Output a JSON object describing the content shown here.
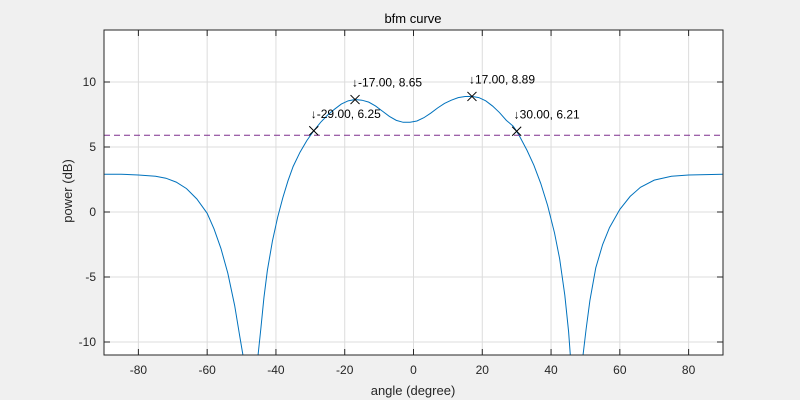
{
  "chart_data": {
    "type": "line",
    "title": "bfm curve",
    "xlabel": "angle (degree)",
    "ylabel": "power (dB)",
    "xlim": [
      -90,
      90
    ],
    "ylim": [
      -11,
      14
    ],
    "xticks": [
      -80,
      -60,
      -40,
      -20,
      0,
      20,
      40,
      60,
      80
    ],
    "yticks": [
      -10,
      -5,
      0,
      5,
      10
    ],
    "grid": true,
    "colors": {
      "curve": "#0072bd",
      "threshold": "#7e2f8e",
      "marker": "#000000",
      "axes_bg": "#ffffff",
      "figure_bg": "#f0f0f0"
    },
    "series": [
      {
        "points": [
          [
            -90,
            2.9
          ],
          [
            -85,
            2.9
          ],
          [
            -80,
            2.85
          ],
          [
            -75,
            2.75
          ],
          [
            -72,
            2.6
          ],
          [
            -69,
            2.3
          ],
          [
            -66,
            1.8
          ],
          [
            -63,
            1.0
          ],
          [
            -60,
            -0.1
          ],
          [
            -58,
            -1.3
          ],
          [
            -56,
            -2.8
          ],
          [
            -54,
            -4.7
          ],
          [
            -52,
            -7.2
          ],
          [
            -50.5,
            -9.6
          ],
          [
            -49.6,
            -11
          ],
          null,
          [
            -45.2,
            -11
          ],
          [
            -44.4,
            -9.0
          ],
          [
            -43.5,
            -6.6
          ],
          [
            -42.5,
            -4.5
          ],
          [
            -41,
            -2.2
          ],
          [
            -39.5,
            -0.4
          ],
          [
            -38,
            1.1
          ],
          [
            -36.5,
            2.4
          ],
          [
            -35,
            3.5
          ],
          [
            -33,
            4.6
          ],
          [
            -31,
            5.5
          ],
          [
            -29,
            6.25
          ],
          [
            -27,
            6.9
          ],
          [
            -25,
            7.45
          ],
          [
            -23,
            7.9
          ],
          [
            -21,
            8.3
          ],
          [
            -19,
            8.55
          ],
          [
            -17,
            8.65
          ],
          [
            -15,
            8.6
          ],
          [
            -13,
            8.45
          ],
          [
            -11,
            8.15
          ],
          [
            -9,
            7.75
          ],
          [
            -7,
            7.35
          ],
          [
            -5,
            7.05
          ],
          [
            -3,
            6.9
          ],
          [
            -1,
            6.9
          ],
          [
            1,
            7.0
          ],
          [
            3,
            7.25
          ],
          [
            5,
            7.6
          ],
          [
            7,
            8.0
          ],
          [
            9,
            8.35
          ],
          [
            11,
            8.6
          ],
          [
            13,
            8.8
          ],
          [
            15,
            8.88
          ],
          [
            17,
            8.89
          ],
          [
            19,
            8.8
          ],
          [
            21,
            8.55
          ],
          [
            23,
            8.15
          ],
          [
            25,
            7.65
          ],
          [
            27,
            7.05
          ],
          [
            29,
            6.6
          ],
          [
            30,
            6.21
          ],
          [
            31,
            5.75
          ],
          [
            33,
            4.75
          ],
          [
            35,
            3.6
          ],
          [
            37,
            2.2
          ],
          [
            39,
            0.5
          ],
          [
            41,
            -1.6
          ],
          [
            42.5,
            -3.6
          ],
          [
            44,
            -6.4
          ],
          [
            45.1,
            -9.2
          ],
          [
            45.6,
            -11
          ],
          null,
          [
            49.3,
            -11
          ],
          [
            50.2,
            -9.0
          ],
          [
            51.3,
            -6.8
          ],
          [
            53,
            -4.3
          ],
          [
            55,
            -2.5
          ],
          [
            57,
            -1.2
          ],
          [
            60,
            0.2
          ],
          [
            63,
            1.2
          ],
          [
            66,
            1.9
          ],
          [
            70,
            2.45
          ],
          [
            75,
            2.75
          ],
          [
            80,
            2.85
          ],
          [
            90,
            2.9
          ]
        ]
      },
      {
        "y": 5.9
      }
    ],
    "markers": [
      {
        "x": -17,
        "y": 8.65,
        "label": "↓-17.00, 8.65"
      },
      {
        "x": -29,
        "y": 6.25,
        "label": "↓-29.00, 6.25"
      },
      {
        "x": 17,
        "y": 8.89,
        "label": "↓17.00, 8.89"
      },
      {
        "x": 30,
        "y": 6.21,
        "label": "↓30.00, 6.21"
      }
    ]
  }
}
